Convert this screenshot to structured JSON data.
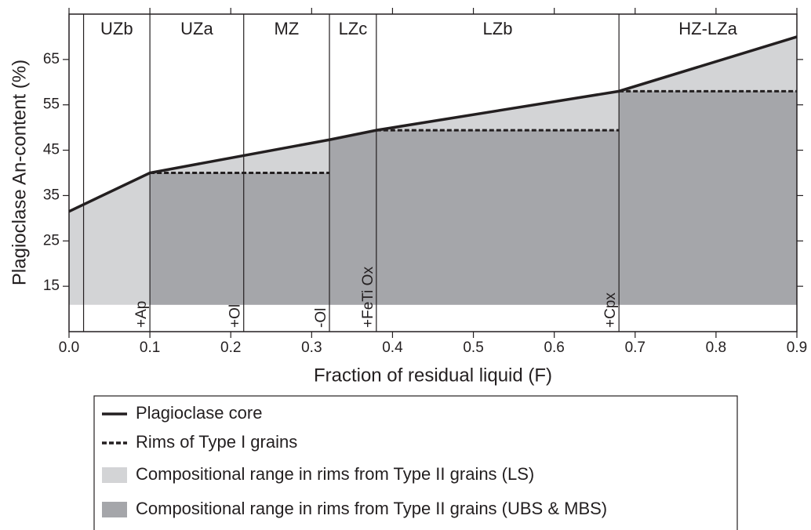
{
  "chart_data": {
    "type": "line",
    "xlabel": "Fraction of residual liquid (F)",
    "ylabel": "Plagioclase An-content (%)",
    "xlim": [
      0,
      0.9
    ],
    "ylim": [
      5,
      75
    ],
    "xticks": [
      {
        "value": 0,
        "label": "0.0"
      },
      0.1,
      0.2,
      0.3,
      0.4,
      0.5,
      0.6,
      0.7,
      0.8,
      0.9
    ],
    "yticks": [
      15,
      25,
      35,
      45,
      55,
      65
    ],
    "zone_boundaries": [
      0.018,
      0.1,
      0.216,
      0.322,
      0.38,
      0.68
    ],
    "zones": [
      "UZb",
      "UZa",
      "MZ",
      "LZc",
      "LZb",
      "HZ-LZa"
    ],
    "annotations": [
      {
        "x": 0.1,
        "text": "+Ap"
      },
      {
        "x": 0.216,
        "text": "+Ol"
      },
      {
        "x": 0.322,
        "text": "-Ol"
      },
      {
        "x": 0.38,
        "text": "+FeTi Ox"
      },
      {
        "x": 0.68,
        "text": "+Cpx"
      }
    ],
    "series": [
      {
        "name": "Plagioclase core",
        "type": "line",
        "style": "solid",
        "color": "#231f20",
        "x": [
          0,
          0.1,
          0.322,
          0.38,
          0.68,
          0.9
        ],
        "values": [
          31.5,
          40,
          47.3,
          49.4,
          58,
          70
        ]
      },
      {
        "name": "Rims of Type I grains",
        "type": "line",
        "style": "dashed",
        "color": "#231f20",
        "x": [
          0.1,
          0.322,
          0.322,
          0.38,
          0.68,
          0.68,
          0.68,
          0.9
        ],
        "values": [
          40,
          40,
          null,
          49.4,
          49.4,
          null,
          58,
          58
        ]
      },
      {
        "name": "Compositional range in rims from Type II grains (LS)",
        "type": "area",
        "color": "#d3d4d6",
        "base": 11,
        "x": [
          0,
          0.1,
          0.322,
          0.38,
          0.68,
          0.9
        ],
        "values": [
          31.5,
          40,
          47.3,
          49.4,
          58,
          70
        ]
      },
      {
        "name": "Compositional range in rims from Type II grains (UBS & MBS)",
        "type": "area",
        "color": "#a5a6aa",
        "base": 11,
        "x": [
          0.1,
          0.322,
          0.322,
          0.38,
          0.68,
          0.68,
          0.9
        ],
        "values": [
          40,
          40,
          47.3,
          49.4,
          49.4,
          58,
          58
        ]
      }
    ]
  }
}
